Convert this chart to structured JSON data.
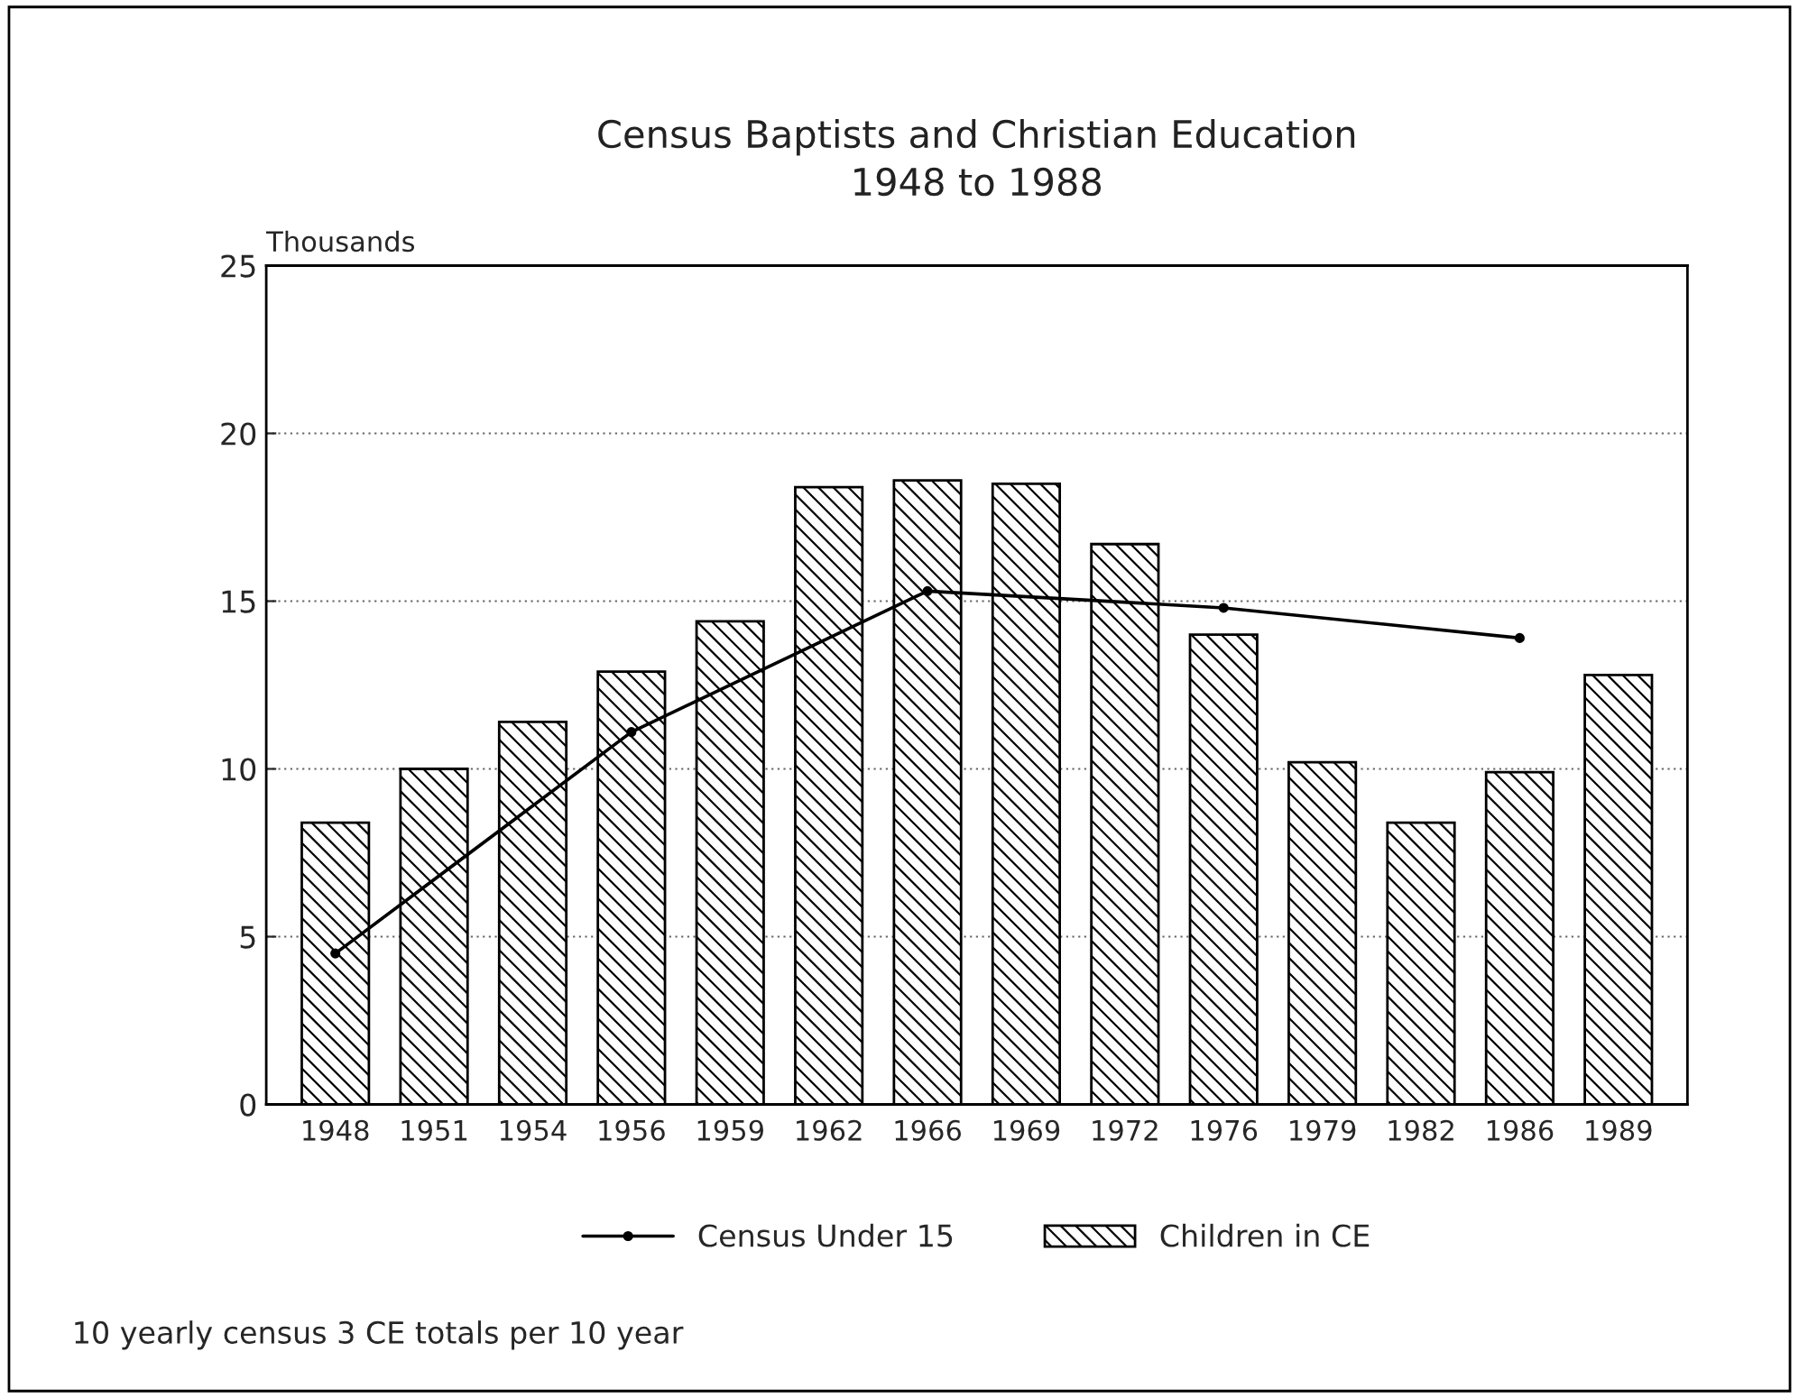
{
  "chart_data": {
    "type": "bar",
    "title": "Census Baptists and Christian Education\n1948 to 1988",
    "ylabel": "Thousands",
    "categories": [
      "1948",
      "1951",
      "1954",
      "1956",
      "1959",
      "1962",
      "1966",
      "1969",
      "1972",
      "1976",
      "1979",
      "1982",
      "1986",
      "1989"
    ],
    "series": [
      {
        "name": "Census Under 15",
        "type": "line",
        "color": "#000000",
        "values": [
          4.5,
          null,
          null,
          11.1,
          null,
          null,
          15.3,
          null,
          null,
          14.8,
          null,
          null,
          13.9,
          null
        ]
      },
      {
        "name": "Children in CE",
        "color": "#000000",
        "values": [
          8.4,
          10.0,
          11.4,
          12.9,
          14.4,
          18.4,
          18.6,
          18.5,
          16.7,
          14.0,
          10.2,
          8.4,
          9.9,
          12.8
        ]
      }
    ],
    "ylim": [
      0,
      25
    ],
    "yticks": [
      0,
      5,
      10,
      15,
      20,
      25
    ],
    "grid": "y",
    "legend": "bottom",
    "marker": "circle",
    "annotations": [
      "10 yearly census 3 CE totals per 10 year"
    ]
  }
}
